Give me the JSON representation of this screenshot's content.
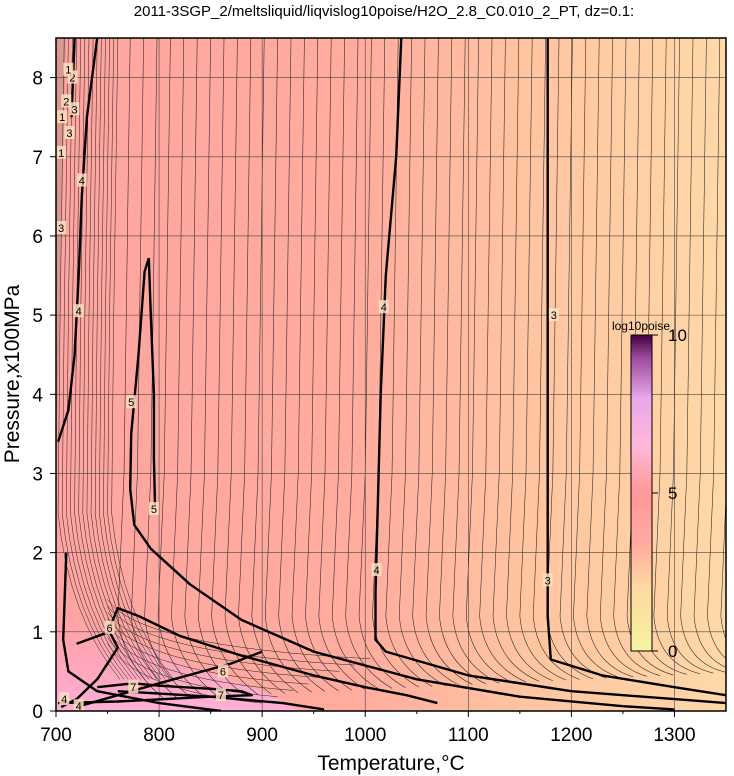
{
  "chart_data": {
    "type": "heatmap",
    "title": "2011-3SGP_2/meltsliquid/liqvislog10poise/H2O_2.8_C0.010_2_PT, dz=0.1:",
    "xlabel": "Temperature,°C",
    "ylabel": "Pressure,x100MPa",
    "xlim": [
      700,
      1350
    ],
    "ylim": [
      0,
      8.5
    ],
    "x_ticks": [
      700,
      800,
      900,
      1000,
      1100,
      1200,
      1300
    ],
    "x_tick_labels": [
      "700",
      "800",
      "900",
      "1000",
      "1100",
      "1200",
      "1300"
    ],
    "y_ticks": [
      0,
      1,
      2,
      3,
      4,
      5,
      6,
      7,
      8
    ],
    "y_tick_labels": [
      "0",
      "1",
      "2",
      "3",
      "4",
      "5",
      "6",
      "7",
      "8"
    ],
    "grid": true,
    "colorbar": {
      "title": "log10poise",
      "range": [
        0,
        10
      ],
      "tick_labels": [
        "0",
        "5",
        "10"
      ],
      "colors": [
        "#f0f0a8",
        "#ffd0a0",
        "#ff9a9a",
        "#ffb8e0",
        "#d7a0e0",
        "#400040"
      ]
    },
    "contour_labels": [
      {
        "text": "4",
        "x": 1018,
        "y": 5.1
      },
      {
        "text": "3",
        "x": 1183,
        "y": 5.0
      },
      {
        "text": "4",
        "x": 1011,
        "y": 1.78
      },
      {
        "text": "3",
        "x": 1177,
        "y": 1.65
      },
      {
        "text": "5",
        "x": 773,
        "y": 3.9
      },
      {
        "text": "5",
        "x": 795,
        "y": 2.55
      },
      {
        "text": "4",
        "x": 722,
        "y": 5.05
      },
      {
        "text": "4",
        "x": 725,
        "y": 6.7
      },
      {
        "text": "6",
        "x": 752,
        "y": 1.05
      },
      {
        "text": "6",
        "x": 862,
        "y": 0.5
      },
      {
        "text": "7",
        "x": 775,
        "y": 0.3
      },
      {
        "text": "7",
        "x": 860,
        "y": 0.2
      },
      {
        "text": "3",
        "x": 705,
        "y": 6.1
      },
      {
        "text": "3",
        "x": 713,
        "y": 7.3
      },
      {
        "text": "3",
        "x": 718,
        "y": 7.6
      },
      {
        "text": "2",
        "x": 710,
        "y": 7.7
      },
      {
        "text": "2",
        "x": 716,
        "y": 8.0
      },
      {
        "text": "1",
        "x": 705,
        "y": 7.05
      },
      {
        "text": "1",
        "x": 706,
        "y": 7.5
      },
      {
        "text": "1",
        "x": 712,
        "y": 8.1
      },
      {
        "text": "4",
        "x": 708,
        "y": 0.15
      },
      {
        "text": "4",
        "x": 722,
        "y": 0.06
      }
    ],
    "bold_contours": [
      {
        "level": 3,
        "points": [
          [
            1177,
            8.5
          ],
          [
            1177,
            3
          ],
          [
            1177,
            1.2
          ],
          [
            1180,
            0.65
          ],
          [
            1230,
            0.45
          ],
          [
            1300,
            0.3
          ],
          [
            1350,
            0.2
          ]
        ]
      },
      {
        "level": 4,
        "points": [
          [
            1035,
            8.5
          ],
          [
            1030,
            7
          ],
          [
            1020,
            5.5
          ],
          [
            1015,
            4
          ],
          [
            1012,
            2.5
          ],
          [
            1010,
            1.5
          ],
          [
            1010,
            0.9
          ],
          [
            1020,
            0.75
          ],
          [
            1100,
            0.45
          ],
          [
            1200,
            0.25
          ],
          [
            1300,
            0.15
          ],
          [
            1350,
            0.1
          ]
        ]
      },
      {
        "level": 5,
        "points": [
          [
            790,
            5.72
          ],
          [
            786,
            5.55
          ],
          [
            780,
            4.5
          ],
          [
            773,
            3.5
          ],
          [
            772,
            2.8
          ],
          [
            776,
            2.35
          ],
          [
            792,
            2.05
          ],
          [
            830,
            1.6
          ],
          [
            880,
            1.15
          ],
          [
            950,
            0.75
          ],
          [
            1050,
            0.4
          ],
          [
            1150,
            0.18
          ],
          [
            1250,
            0.06
          ],
          [
            1300,
            0.02
          ]
        ]
      },
      {
        "level": 5,
        "points": [
          [
            790,
            5.72
          ],
          [
            792,
            5.0
          ],
          [
            795,
            4.0
          ],
          [
            795,
            3.2
          ],
          [
            796,
            2.6
          ]
        ]
      },
      {
        "level": 4,
        "points": [
          [
            740,
            8.5
          ],
          [
            730,
            7.5
          ],
          [
            725,
            6.5
          ],
          [
            722,
            5.5
          ],
          [
            718,
            4.5
          ],
          [
            712,
            3.8
          ],
          [
            702,
            3.4
          ]
        ]
      },
      {
        "level": 4,
        "points": [
          [
            718,
            8.5
          ],
          [
            715,
            7.5
          ]
        ]
      },
      {
        "level": 4,
        "points": [
          [
            720,
            0.05
          ],
          [
            760,
            0.2
          ],
          [
            800,
            0.35
          ],
          [
            870,
            0.6
          ],
          [
            900,
            0.75
          ]
        ]
      },
      {
        "level": 4,
        "points": [
          [
            702,
            0.1
          ],
          [
            760,
            0.12
          ],
          [
            850,
            0.18
          ],
          [
            920,
            0.1
          ],
          [
            960,
            0.02
          ]
        ]
      },
      {
        "level": 5,
        "points": [
          [
            710,
            2.0
          ],
          [
            707,
            0.9
          ],
          [
            712,
            0.5
          ],
          [
            740,
            0.25
          ],
          [
            800,
            0.1
          ],
          [
            860,
            0.0
          ]
        ]
      },
      {
        "level": 6,
        "points": [
          [
            752,
            1.05
          ],
          [
            760,
            1.3
          ],
          [
            780,
            1.2
          ],
          [
            820,
            0.95
          ],
          [
            880,
            0.7
          ],
          [
            950,
            0.45
          ],
          [
            1000,
            0.3
          ],
          [
            1040,
            0.2
          ],
          [
            1070,
            0.1
          ]
        ]
      },
      {
        "level": 6,
        "points": [
          [
            720,
            0.85
          ],
          [
            752,
            1.0
          ],
          [
            760,
            0.8
          ],
          [
            740,
            0.4
          ],
          [
            720,
            0.15
          ],
          [
            705,
            0.05
          ]
        ]
      },
      {
        "level": 7,
        "points": [
          [
            740,
            0.3
          ],
          [
            775,
            0.35
          ],
          [
            800,
            0.32
          ],
          [
            850,
            0.28
          ],
          [
            880,
            0.25
          ],
          [
            890,
            0.2
          ],
          [
            850,
            0.18
          ],
          [
            800,
            0.22
          ],
          [
            760,
            0.25
          ]
        ]
      }
    ]
  }
}
